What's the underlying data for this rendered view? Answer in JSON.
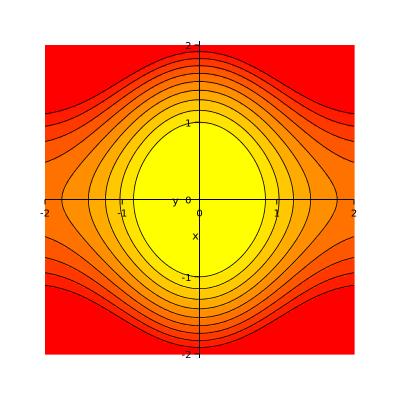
{
  "chart_data": {
    "type": "heatmap",
    "subtype": "filled-contour",
    "title": "",
    "xlabel": "x",
    "ylabel": "y",
    "xlim": [
      -2,
      2
    ],
    "ylim": [
      -2,
      2
    ],
    "xticks": [
      -2,
      -1,
      0,
      1,
      2
    ],
    "yticks": [
      -2,
      -1,
      0,
      1,
      2
    ],
    "xtick_labels": [
      "-2",
      "-1",
      "0",
      "1",
      "2"
    ],
    "ytick_labels": [
      "-2",
      "-1",
      "0",
      "1",
      "2"
    ],
    "grid": false,
    "legend": "none",
    "levels": [
      1,
      2,
      3,
      4,
      5,
      6,
      7,
      8,
      9
    ],
    "colors": [
      "#ffff00",
      "#ffe400",
      "#ffc800",
      "#ffab00",
      "#ff8f00",
      "#ff7200",
      "#ff5600",
      "#ff3900",
      "#ff1d00",
      "#ff0000"
    ],
    "contour_line_color": "#000000"
  }
}
